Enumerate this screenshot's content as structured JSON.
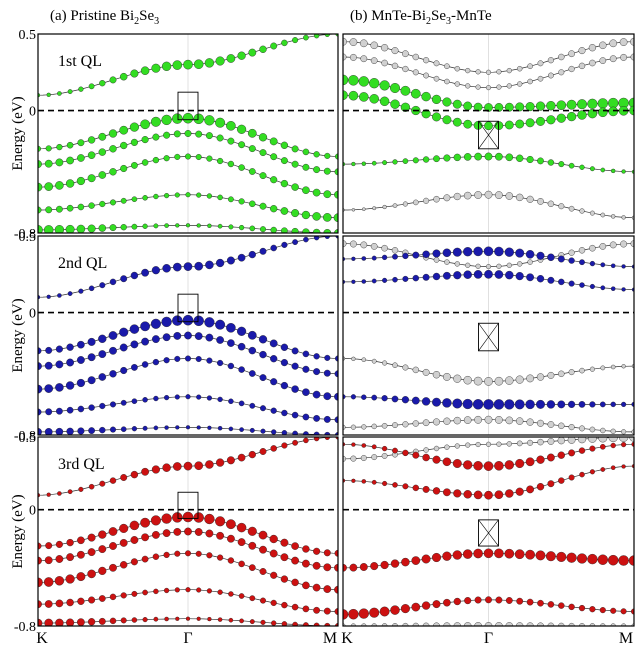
{
  "figure": {
    "title_a_prefix": "(a)  Pristine Bi",
    "title_a_sub1": "2",
    "title_a_mid": "Se",
    "title_a_sub2": "3",
    "title_b_prefix": "(b)  MnTe-Bi",
    "title_b_sub1": "2",
    "title_b_mid": "Se",
    "title_b_sub2": "3",
    "title_b_suffix": "-MnTe",
    "ylabel": "Energy (eV)",
    "kpoints": [
      "K",
      "Γ",
      "M"
    ],
    "yticks": [
      "0.5",
      "0",
      "-0.8"
    ],
    "row_labels": [
      "1st QL",
      "2nd QL",
      "3rd QL"
    ]
  },
  "colors": {
    "ql1": "#33dd22",
    "ql2": "#1a1aaa",
    "ql3": "#cc1111",
    "mnte": "#d0d0d0",
    "band_line": "#333333"
  },
  "chart_data": [
    {
      "panel": "(a) 1st QL",
      "type": "scatter",
      "x_axis": [
        "K",
        "Γ",
        "M"
      ],
      "ylim": [
        -0.8,
        0.5
      ],
      "fermi_level": 0,
      "highlight": "ql1",
      "bands": [
        {
          "name": "cb1",
          "y": [
            0.1,
            0.3,
            0.5
          ],
          "weight": [
            0.2,
            0.8,
            0.3
          ]
        },
        {
          "name": "vb1",
          "y": [
            -0.25,
            -0.05,
            -0.3
          ],
          "weight": [
            0.4,
            0.9,
            0.4
          ]
        },
        {
          "name": "vb2",
          "y": [
            -0.35,
            -0.15,
            -0.4
          ],
          "weight": [
            0.6,
            0.5,
            0.5
          ]
        },
        {
          "name": "vb3",
          "y": [
            -0.5,
            -0.3,
            -0.55
          ],
          "weight": [
            0.7,
            0.4,
            0.6
          ]
        },
        {
          "name": "vb4",
          "y": [
            -0.65,
            -0.55,
            -0.7
          ],
          "weight": [
            0.5,
            0.3,
            0.7
          ]
        },
        {
          "name": "vb5",
          "y": [
            -0.78,
            -0.75,
            -0.8
          ],
          "weight": [
            0.8,
            0.2,
            0.6
          ]
        }
      ]
    },
    {
      "panel": "(a) 2nd QL",
      "type": "scatter",
      "x_axis": [
        "K",
        "Γ",
        "M"
      ],
      "ylim": [
        -0.8,
        0.5
      ],
      "fermi_level": 0,
      "highlight": "ql2",
      "bands": [
        {
          "name": "cb1",
          "y": [
            0.1,
            0.3,
            0.5
          ],
          "weight": [
            0.2,
            0.7,
            0.3
          ]
        },
        {
          "name": "vb1",
          "y": [
            -0.25,
            -0.05,
            -0.3
          ],
          "weight": [
            0.5,
            0.9,
            0.4
          ]
        },
        {
          "name": "vb2",
          "y": [
            -0.35,
            -0.15,
            -0.4
          ],
          "weight": [
            0.6,
            0.6,
            0.5
          ]
        },
        {
          "name": "vb3",
          "y": [
            -0.5,
            -0.3,
            -0.55
          ],
          "weight": [
            0.7,
            0.4,
            0.6
          ]
        },
        {
          "name": "vb4",
          "y": [
            -0.65,
            -0.55,
            -0.7
          ],
          "weight": [
            0.5,
            0.3,
            0.5
          ]
        },
        {
          "name": "vb5",
          "y": [
            -0.78,
            -0.75,
            -0.8
          ],
          "weight": [
            0.6,
            0.2,
            0.4
          ]
        }
      ]
    },
    {
      "panel": "(a) 3rd QL",
      "type": "scatter",
      "x_axis": [
        "K",
        "Γ",
        "M"
      ],
      "ylim": [
        -0.8,
        0.5
      ],
      "fermi_level": 0,
      "highlight": "ql3",
      "bands": [
        {
          "name": "cb1",
          "y": [
            0.1,
            0.3,
            0.5
          ],
          "weight": [
            0.2,
            0.7,
            0.3
          ]
        },
        {
          "name": "vb1",
          "y": [
            -0.25,
            -0.05,
            -0.3
          ],
          "weight": [
            0.5,
            0.9,
            0.5
          ]
        },
        {
          "name": "vb2",
          "y": [
            -0.35,
            -0.15,
            -0.4
          ],
          "weight": [
            0.6,
            0.6,
            0.6
          ]
        },
        {
          "name": "vb3",
          "y": [
            -0.5,
            -0.3,
            -0.55
          ],
          "weight": [
            0.8,
            0.4,
            0.6
          ]
        },
        {
          "name": "vb4",
          "y": [
            -0.65,
            -0.55,
            -0.7
          ],
          "weight": [
            0.6,
            0.3,
            0.5
          ]
        },
        {
          "name": "vb5",
          "y": [
            -0.78,
            -0.75,
            -0.8
          ],
          "weight": [
            0.7,
            0.2,
            0.4
          ]
        }
      ]
    },
    {
      "panel": "(b) 1st QL",
      "type": "scatter",
      "x_axis": [
        "K",
        "Γ",
        "M"
      ],
      "ylim": [
        -0.8,
        0.5
      ],
      "fermi_level": 0,
      "highlight": "ql1",
      "bands": [
        {
          "name": "mnte1",
          "y": [
            0.45,
            0.25,
            0.45
          ],
          "weight": [
            0.6,
            0.3,
            0.6
          ],
          "color": "mnte"
        },
        {
          "name": "mnte2",
          "y": [
            0.35,
            0.15,
            0.35
          ],
          "weight": [
            0.5,
            0.3,
            0.5
          ],
          "color": "mnte"
        },
        {
          "name": "ss1",
          "y": [
            0.2,
            0.02,
            0.05
          ],
          "weight": [
            0.9,
            0.7,
            0.9
          ]
        },
        {
          "name": "ss2",
          "y": [
            0.1,
            -0.1,
            0.0
          ],
          "weight": [
            0.8,
            0.7,
            0.8
          ]
        },
        {
          "name": "vb1",
          "y": [
            -0.35,
            -0.3,
            -0.4
          ],
          "weight": [
            0.2,
            0.6,
            0.2
          ]
        },
        {
          "name": "vb2",
          "y": [
            -0.65,
            -0.55,
            -0.7
          ],
          "weight": [
            0.1,
            0.6,
            0.2
          ],
          "color": "mnte"
        }
      ]
    },
    {
      "panel": "(b) 2nd QL",
      "type": "scatter",
      "x_axis": [
        "K",
        "Γ",
        "M"
      ],
      "ylim": [
        -0.8,
        0.5
      ],
      "fermi_level": 0,
      "highlight": "ql2",
      "bands": [
        {
          "name": "mnte1",
          "y": [
            0.45,
            0.3,
            0.45
          ],
          "weight": [
            0.5,
            0.3,
            0.5
          ],
          "color": "mnte"
        },
        {
          "name": "cb1",
          "y": [
            0.35,
            0.4,
            0.3
          ],
          "weight": [
            0.2,
            0.8,
            0.2
          ]
        },
        {
          "name": "cb2",
          "y": [
            0.2,
            0.25,
            0.15
          ],
          "weight": [
            0.2,
            0.7,
            0.2
          ]
        },
        {
          "name": "vb1",
          "y": [
            -0.3,
            -0.45,
            -0.35
          ],
          "weight": [
            0.2,
            0.7,
            0.2
          ],
          "color": "mnte"
        },
        {
          "name": "vb2",
          "y": [
            -0.55,
            -0.6,
            -0.6
          ],
          "weight": [
            0.3,
            0.9,
            0.3
          ]
        },
        {
          "name": "vb3",
          "y": [
            -0.75,
            -0.7,
            -0.78
          ],
          "weight": [
            0.3,
            0.6,
            0.3
          ],
          "color": "mnte"
        }
      ]
    },
    {
      "panel": "(b) 3rd QL",
      "type": "scatter",
      "x_axis": [
        "K",
        "Γ",
        "M"
      ],
      "ylim": [
        -0.8,
        0.5
      ],
      "fermi_level": 0,
      "highlight": "ql3",
      "bands": [
        {
          "name": "mnte1",
          "y": [
            0.35,
            0.45,
            0.5
          ],
          "weight": [
            0.4,
            0.3,
            0.8
          ],
          "color": "mnte"
        },
        {
          "name": "cb1",
          "y": [
            0.45,
            0.3,
            0.45
          ],
          "weight": [
            0.2,
            0.8,
            0.3
          ]
        },
        {
          "name": "cb2",
          "y": [
            0.2,
            0.1,
            0.3
          ],
          "weight": [
            0.2,
            0.7,
            0.2
          ]
        },
        {
          "name": "vb1",
          "y": [
            -0.4,
            -0.3,
            -0.35
          ],
          "weight": [
            0.6,
            0.8,
            0.9
          ]
        },
        {
          "name": "vb2",
          "y": [
            -0.72,
            -0.62,
            -0.7
          ],
          "weight": [
            0.9,
            0.5,
            0.4
          ]
        },
        {
          "name": "vb3",
          "y": [
            -0.8,
            -0.8,
            -0.8
          ],
          "weight": [
            0.3,
            0.6,
            0.3
          ],
          "color": "mnte"
        }
      ]
    }
  ]
}
